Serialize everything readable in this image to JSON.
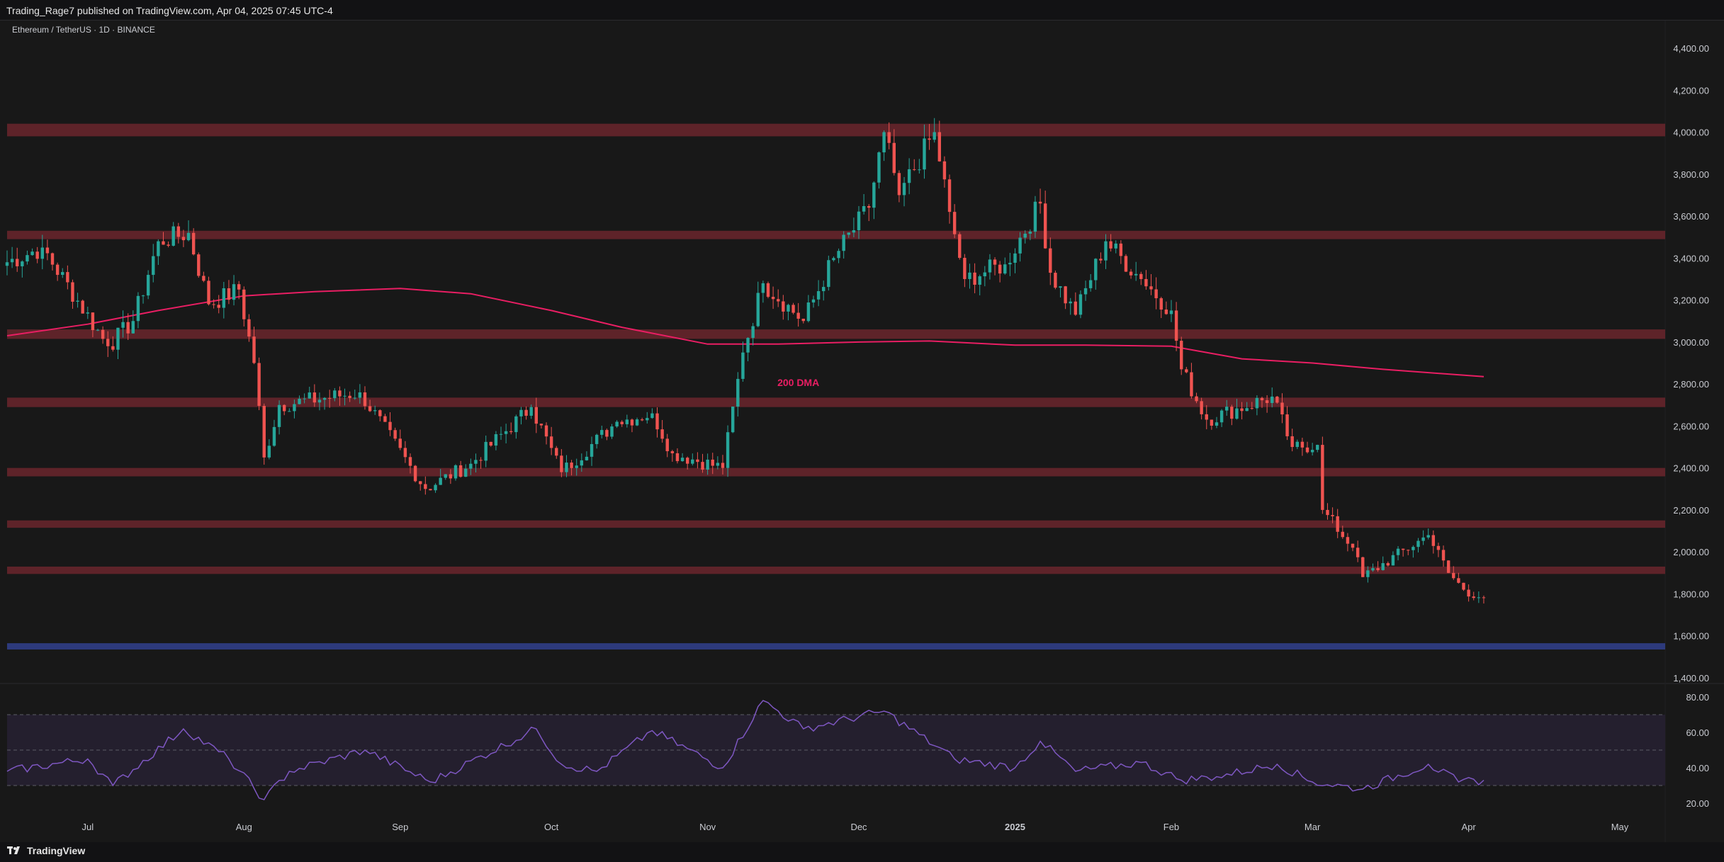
{
  "header": {
    "publish_line": "Trading_Rage7 published on TradingView.com, Apr 04, 2025 07:45 UTC-4"
  },
  "footer": {
    "brand": "TradingView",
    "brand_icon": "tradingview-logo-icon"
  },
  "colors": {
    "background": "#181818",
    "bull": "#26a69a",
    "bear": "#ef5350",
    "zone": "#5e2329",
    "support_zone": "#2d3a7c",
    "dma": "#e91e63",
    "rsi_line": "#7e57c2",
    "rsi_band": "#241f2e"
  },
  "chart_data": [
    {
      "type": "candlestick",
      "symbol_label": "Ethereum / TetherUS · 1D · BINANCE",
      "timeframe": "1D",
      "x_range": [
        "2024-06-15",
        "2025-05-10"
      ],
      "y_range": [
        1400,
        4450
      ],
      "yticks": [
        "4,400.00",
        "4,200.00",
        "4,000.00",
        "3,800.00",
        "3,600.00",
        "3,400.00",
        "3,200.00",
        "3,000.00",
        "2,800.00",
        "2,600.00",
        "2,400.00",
        "2,200.00",
        "2,000.00",
        "1,800.00",
        "1,600.00",
        "1,400.00"
      ],
      "xticks": [
        {
          "label": "Jul",
          "date": "2024-07-01"
        },
        {
          "label": "Aug",
          "date": "2024-08-01"
        },
        {
          "label": "Sep",
          "date": "2024-09-01"
        },
        {
          "label": "Oct",
          "date": "2024-10-01"
        },
        {
          "label": "Nov",
          "date": "2024-11-01"
        },
        {
          "label": "Dec",
          "date": "2024-12-01"
        },
        {
          "label": "2025",
          "date": "2025-01-01",
          "bold": true
        },
        {
          "label": "Feb",
          "date": "2025-02-01"
        },
        {
          "label": "Mar",
          "date": "2025-03-01"
        },
        {
          "label": "Apr",
          "date": "2025-04-01"
        },
        {
          "label": "May",
          "date": "2025-05-01"
        }
      ],
      "resistance_zones": [
        {
          "low": 3980,
          "high": 4040
        },
        {
          "low": 3490,
          "high": 3530
        },
        {
          "low": 3015,
          "high": 3060
        },
        {
          "low": 2690,
          "high": 2735
        },
        {
          "low": 2360,
          "high": 2400
        },
        {
          "low": 2115,
          "high": 2150
        },
        {
          "low": 1895,
          "high": 1930
        }
      ],
      "support_zones": [
        {
          "low": 1535,
          "high": 1565
        }
      ],
      "annotation": {
        "text": "200 DMA",
        "date": "2024-11-19",
        "price": 2790
      },
      "dma200": [
        {
          "date": "2024-06-15",
          "value": 3030
        },
        {
          "date": "2024-07-01",
          "value": 3085
        },
        {
          "date": "2024-07-15",
          "value": 3150
        },
        {
          "date": "2024-08-01",
          "value": 3220
        },
        {
          "date": "2024-08-15",
          "value": 3240
        },
        {
          "date": "2024-09-01",
          "value": 3255
        },
        {
          "date": "2024-09-15",
          "value": 3230
        },
        {
          "date": "2024-10-01",
          "value": 3150
        },
        {
          "date": "2024-10-15",
          "value": 3070
        },
        {
          "date": "2024-11-01",
          "value": 2990
        },
        {
          "date": "2024-11-15",
          "value": 2990
        },
        {
          "date": "2024-12-01",
          "value": 3000
        },
        {
          "date": "2024-12-15",
          "value": 3005
        },
        {
          "date": "2025-01-01",
          "value": 2985
        },
        {
          "date": "2025-01-15",
          "value": 2985
        },
        {
          "date": "2025-02-01",
          "value": 2980
        },
        {
          "date": "2025-02-15",
          "value": 2920
        },
        {
          "date": "2025-03-01",
          "value": 2900
        },
        {
          "date": "2025-03-15",
          "value": 2870
        },
        {
          "date": "2025-04-04",
          "value": 2835
        }
      ],
      "ohlc_keypoints": [
        {
          "date": "2024-06-15",
          "close": 3380
        },
        {
          "date": "2024-06-22",
          "close": 3450
        },
        {
          "date": "2024-07-05",
          "close": 2980
        },
        {
          "date": "2024-07-10",
          "close": 3100
        },
        {
          "date": "2024-07-15",
          "close": 3480
        },
        {
          "date": "2024-07-21",
          "close": 3520
        },
        {
          "date": "2024-07-25",
          "close": 3180
        },
        {
          "date": "2024-07-31",
          "close": 3250
        },
        {
          "date": "2024-08-03",
          "close": 2900
        },
        {
          "date": "2024-08-05",
          "close": 2450
        },
        {
          "date": "2024-08-08",
          "close": 2700
        },
        {
          "date": "2024-08-24",
          "close": 2760
        },
        {
          "date": "2024-09-06",
          "close": 2300
        },
        {
          "date": "2024-09-15",
          "close": 2420
        },
        {
          "date": "2024-09-27",
          "close": 2690
        },
        {
          "date": "2024-10-03",
          "close": 2380
        },
        {
          "date": "2024-10-14",
          "close": 2620
        },
        {
          "date": "2024-10-21",
          "close": 2660
        },
        {
          "date": "2024-10-25",
          "close": 2470
        },
        {
          "date": "2024-11-04",
          "close": 2400
        },
        {
          "date": "2024-11-08",
          "close": 2950
        },
        {
          "date": "2024-11-12",
          "close": 3280
        },
        {
          "date": "2024-11-20",
          "close": 3100
        },
        {
          "date": "2024-11-26",
          "close": 3400
        },
        {
          "date": "2024-12-03",
          "close": 3640
        },
        {
          "date": "2024-12-06",
          "close": 4000
        },
        {
          "date": "2024-12-09",
          "close": 3700
        },
        {
          "date": "2024-12-16",
          "close": 4000
        },
        {
          "date": "2024-12-19",
          "close": 3620
        },
        {
          "date": "2024-12-22",
          "close": 3300
        },
        {
          "date": "2024-12-30",
          "close": 3370
        },
        {
          "date": "2025-01-06",
          "close": 3660
        },
        {
          "date": "2025-01-08",
          "close": 3330
        },
        {
          "date": "2025-01-13",
          "close": 3130
        },
        {
          "date": "2025-01-19",
          "close": 3480
        },
        {
          "date": "2025-01-26",
          "close": 3300
        },
        {
          "date": "2025-02-01",
          "close": 3150
        },
        {
          "date": "2025-02-03",
          "close": 2870
        },
        {
          "date": "2025-02-08",
          "close": 2630
        },
        {
          "date": "2025-02-21",
          "close": 2740
        },
        {
          "date": "2025-02-25",
          "close": 2500
        },
        {
          "date": "2025-03-02",
          "close": 2510
        },
        {
          "date": "2025-03-03",
          "close": 2200
        },
        {
          "date": "2025-03-09",
          "close": 2020
        },
        {
          "date": "2025-03-11",
          "close": 1880
        },
        {
          "date": "2025-03-24",
          "close": 2080
        },
        {
          "date": "2025-03-28",
          "close": 1900
        },
        {
          "date": "2025-03-31",
          "close": 1820
        },
        {
          "date": "2025-04-04",
          "close": 1780
        }
      ]
    },
    {
      "type": "line",
      "indicator": "RSI",
      "y_range": [
        15,
        82
      ],
      "yticks": [
        "80.00",
        "60.00",
        "40.00",
        "20.00"
      ],
      "overbought": 70,
      "oversold": 30,
      "midline": 50,
      "keypoints": [
        {
          "date": "2024-06-15",
          "value": 38
        },
        {
          "date": "2024-07-01",
          "value": 45
        },
        {
          "date": "2024-07-06",
          "value": 30
        },
        {
          "date": "2024-07-20",
          "value": 62
        },
        {
          "date": "2024-07-29",
          "value": 45
        },
        {
          "date": "2024-08-05",
          "value": 22
        },
        {
          "date": "2024-08-10",
          "value": 38
        },
        {
          "date": "2024-08-25",
          "value": 50
        },
        {
          "date": "2024-09-07",
          "value": 32
        },
        {
          "date": "2024-09-28",
          "value": 62
        },
        {
          "date": "2024-10-03",
          "value": 42
        },
        {
          "date": "2024-10-10",
          "value": 38
        },
        {
          "date": "2024-10-21",
          "value": 61
        },
        {
          "date": "2024-11-04",
          "value": 40
        },
        {
          "date": "2024-11-12",
          "value": 78
        },
        {
          "date": "2024-11-20",
          "value": 62
        },
        {
          "date": "2024-12-06",
          "value": 72
        },
        {
          "date": "2024-12-20",
          "value": 45
        },
        {
          "date": "2025-01-01",
          "value": 40
        },
        {
          "date": "2025-01-06",
          "value": 55
        },
        {
          "date": "2025-01-13",
          "value": 38
        },
        {
          "date": "2025-01-26",
          "value": 43
        },
        {
          "date": "2025-02-03",
          "value": 33
        },
        {
          "date": "2025-02-10",
          "value": 35
        },
        {
          "date": "2025-02-22",
          "value": 42
        },
        {
          "date": "2025-03-01",
          "value": 32
        },
        {
          "date": "2025-03-11",
          "value": 28
        },
        {
          "date": "2025-03-24",
          "value": 42
        },
        {
          "date": "2025-03-30",
          "value": 32
        },
        {
          "date": "2025-04-04",
          "value": 33
        }
      ]
    }
  ]
}
